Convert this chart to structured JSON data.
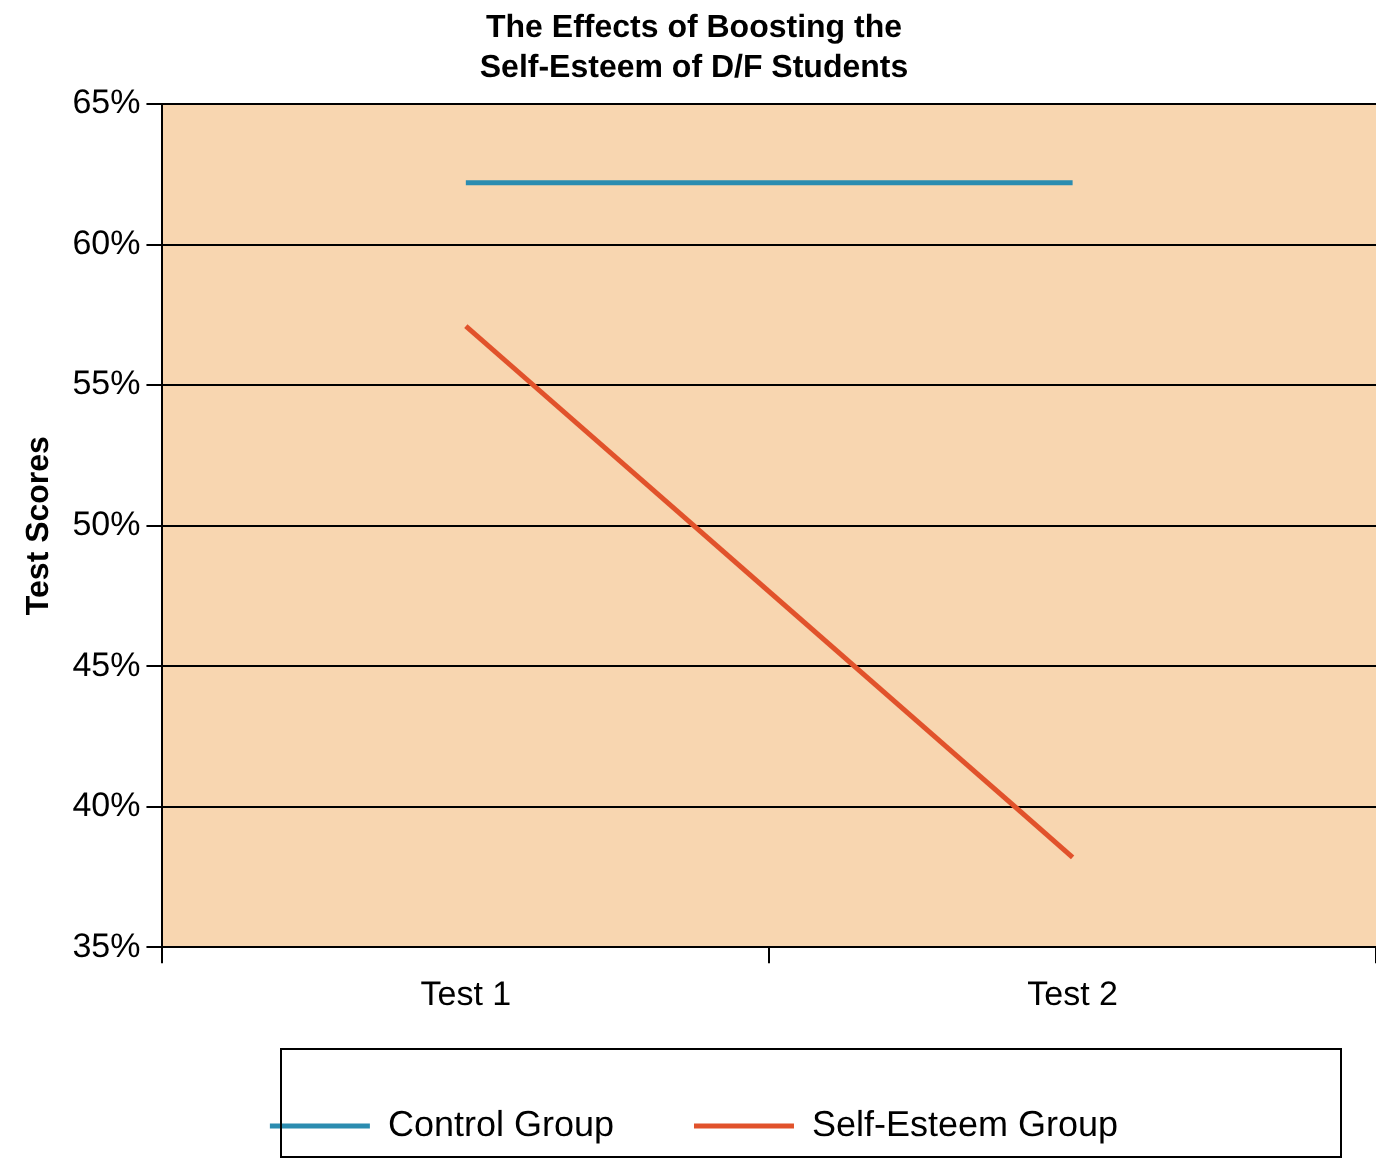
{
  "chart_data": {
    "type": "line",
    "title": "The Effects of Boosting the\nSelf-Esteem of D/F Students",
    "ylabel": "Test Scores",
    "categories": [
      "Test 1",
      "Test 2"
    ],
    "series": [
      {
        "name": "Control Group",
        "color": "#2b8cb0",
        "values": [
          62.2,
          62.2
        ]
      },
      {
        "name": "Self-Esteem Group",
        "color": "#e1522b",
        "values": [
          57.1,
          38.2
        ]
      }
    ],
    "ylim": [
      35,
      65
    ],
    "yticks": [
      {
        "value": 35,
        "label": "35%"
      },
      {
        "value": 40,
        "label": "40%"
      },
      {
        "value": 45,
        "label": "45%"
      },
      {
        "value": 50,
        "label": "50%"
      },
      {
        "value": 55,
        "label": "55%"
      },
      {
        "value": 60,
        "label": "60%"
      },
      {
        "value": 65,
        "label": "65%"
      }
    ],
    "grid": "y",
    "legend": "bottom",
    "marker": "none",
    "line_style": "solid"
  }
}
